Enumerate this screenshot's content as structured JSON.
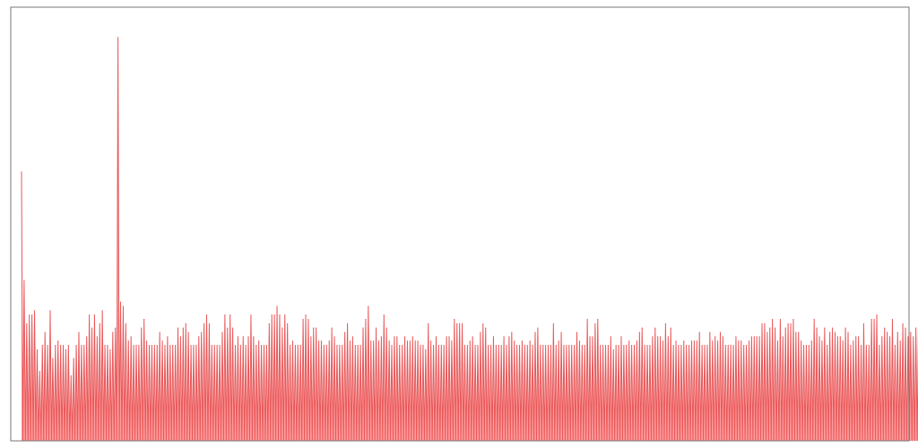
{
  "chart_data": {
    "type": "area",
    "title": "",
    "xlabel": "",
    "ylabel": "",
    "grid": false,
    "legend": "none",
    "series_color": "#e8585a",
    "fill_color": "#ff7b7b",
    "frame_color": "#777777",
    "xlim": [
      0,
      339
    ],
    "ylim": [
      0,
      100
    ],
    "peaks": [
      62,
      37,
      27,
      29,
      29,
      30,
      21,
      16,
      22,
      25,
      22,
      30,
      19,
      22,
      23,
      22,
      22,
      21,
      22,
      15,
      19,
      22,
      25,
      22,
      22,
      24,
      29,
      26,
      29,
      24,
      27,
      30,
      22,
      22,
      21,
      25,
      26,
      93,
      32,
      31,
      27,
      23,
      24,
      22,
      22,
      22,
      26,
      28,
      23,
      22,
      22,
      22,
      22,
      25,
      23,
      22,
      24,
      22,
      22,
      22,
      26,
      24,
      26,
      27,
      25,
      22,
      22,
      22,
      24,
      25,
      27,
      29,
      27,
      22,
      22,
      22,
      22,
      25,
      29,
      26,
      29,
      26,
      22,
      24,
      22,
      24,
      22,
      24,
      29,
      24,
      22,
      23,
      22,
      22,
      22,
      27,
      29,
      29,
      31,
      29,
      26,
      29,
      27,
      22,
      23,
      22,
      22,
      22,
      28,
      29,
      28,
      24,
      26,
      26,
      23,
      23,
      22,
      22,
      23,
      26,
      24,
      22,
      22,
      22,
      25,
      27,
      23,
      24,
      22,
      22,
      22,
      26,
      28,
      31,
      23,
      23,
      26,
      23,
      24,
      29,
      26,
      23,
      22,
      24,
      24,
      22,
      22,
      24,
      23,
      23,
      24,
      23,
      23,
      22,
      22,
      21,
      27,
      23,
      22,
      24,
      22,
      22,
      22,
      24,
      24,
      23,
      28,
      27,
      27,
      27,
      22,
      22,
      23,
      24,
      22,
      22,
      25,
      27,
      26,
      22,
      22,
      24,
      22,
      22,
      22,
      24,
      22,
      24,
      25,
      23,
      22,
      22,
      23,
      22,
      22,
      23,
      22,
      25,
      26,
      22,
      22,
      22,
      22,
      22,
      27,
      22,
      23,
      25,
      22,
      22,
      22,
      22,
      22,
      25,
      23,
      22,
      22,
      28,
      24,
      24,
      27,
      28,
      22,
      22,
      22,
      22,
      24,
      21,
      22,
      22,
      24,
      22,
      22,
      23,
      22,
      22,
      23,
      25,
      26,
      22,
      22,
      22,
      24,
      26,
      24,
      24,
      23,
      27,
      24,
      26,
      22,
      23,
      22,
      22,
      23,
      22,
      22,
      23,
      23,
      23,
      25,
      22,
      22,
      22,
      25,
      23,
      24,
      23,
      25,
      24,
      22,
      22,
      22,
      22,
      24,
      23,
      23,
      22,
      22,
      23,
      24,
      24,
      24,
      24,
      27,
      27,
      25,
      26,
      28,
      26,
      23,
      28,
      24,
      26,
      27,
      27,
      28,
      25,
      25,
      23,
      22,
      22,
      22,
      23,
      28,
      26,
      24,
      23,
      26,
      22,
      25,
      26,
      25,
      24,
      24,
      23,
      26,
      25,
      22,
      23,
      24,
      24,
      22,
      27,
      22,
      22,
      28,
      28,
      29,
      22,
      24,
      26,
      25,
      24,
      28,
      22,
      25,
      23,
      27,
      26,
      24,
      25,
      24,
      26,
      28,
      28,
      27,
      22,
      25,
      27,
      28,
      23,
      25
    ]
  }
}
